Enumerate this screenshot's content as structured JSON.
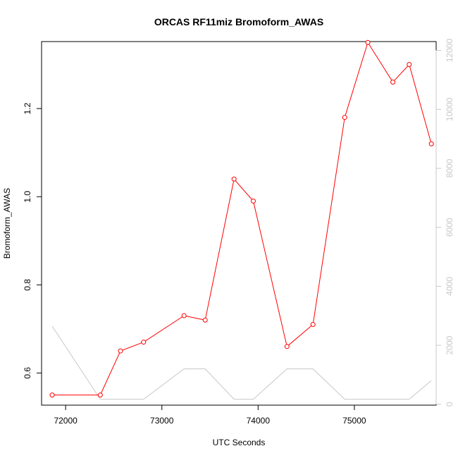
{
  "chart_data": {
    "type": "line",
    "title": "ORCAS RF11miz Bromoform_AWAS",
    "xlabel": "UTC Seconds",
    "ylabel": "Bromoform_AWAS",
    "xlim": [
      71750,
      75850
    ],
    "ylim": [
      0.527,
      1.352
    ],
    "y2lim": [
      -30,
      12300
    ],
    "xticks": [
      72000,
      73000,
      74000,
      75000
    ],
    "yticks": [
      0.6,
      0.8,
      1.0,
      1.2
    ],
    "y2ticks": [
      0,
      2000,
      4000,
      6000,
      8000,
      10000,
      12000
    ],
    "xtick_labels": [
      "72000",
      "73000",
      "74000",
      "75000"
    ],
    "ytick_labels": [
      "0.6",
      "0.8",
      "1.0",
      "1.2"
    ],
    "y2tick_labels": [
      "0",
      "2000",
      "4000",
      "6000",
      "8000",
      "10000",
      "12000"
    ],
    "grid": false,
    "series": [
      {
        "axis": "left",
        "color": "#ff0000",
        "marker": "open-circle",
        "x": [
          71860,
          72360,
          72570,
          72810,
          73230,
          73450,
          73750,
          73950,
          74300,
          74570,
          74900,
          75140,
          75400,
          75570,
          75800
        ],
        "y": [
          0.55,
          0.55,
          0.65,
          0.67,
          0.73,
          0.72,
          1.04,
          0.99,
          0.66,
          0.71,
          1.18,
          1.35,
          1.26,
          1.3,
          1.12
        ]
      },
      {
        "axis": "right",
        "color": "#c8c8c8",
        "marker": "none",
        "x": [
          71860,
          72360,
          72570,
          72810,
          73230,
          73450,
          73750,
          73950,
          74300,
          74570,
          74900,
          75140,
          75400,
          75570,
          75800
        ],
        "y": [
          2650,
          170,
          170,
          170,
          1200,
          1200,
          170,
          170,
          1200,
          1200,
          170,
          170,
          170,
          170,
          800
        ]
      }
    ]
  }
}
